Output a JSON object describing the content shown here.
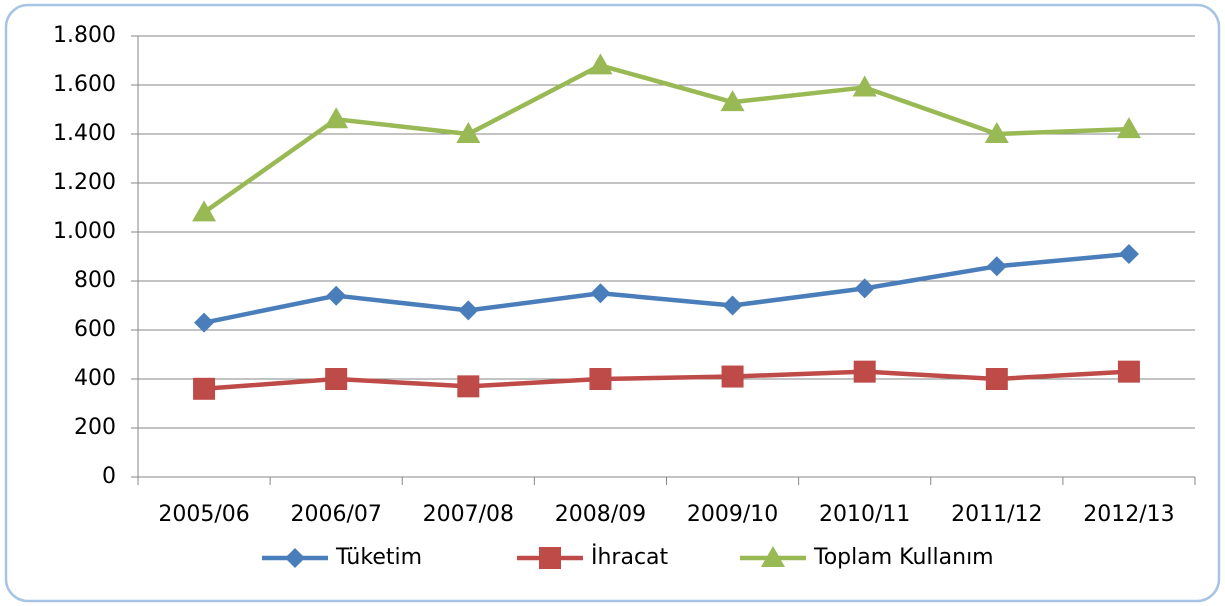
{
  "chart_data": {
    "type": "line",
    "categories": [
      "2005/06",
      "2006/07",
      "2007/08",
      "2008/09",
      "2009/10",
      "2010/11",
      "2011/12",
      "2012/13"
    ],
    "series": [
      {
        "name": "Tüketim",
        "color": "#4a7ebb",
        "marker": "diamond",
        "values": [
          630,
          740,
          680,
          750,
          700,
          770,
          860,
          910
        ]
      },
      {
        "name": "İhracat",
        "color": "#be4b48",
        "marker": "square",
        "values": [
          360,
          400,
          370,
          400,
          410,
          430,
          400,
          430
        ]
      },
      {
        "name": "Toplam Kullanım",
        "color": "#98b954",
        "marker": "triangle",
        "values": [
          1080,
          1460,
          1400,
          1680,
          1530,
          1590,
          1400,
          1420
        ]
      }
    ],
    "ylim": [
      0,
      1800
    ],
    "yticks": [
      0,
      200,
      400,
      600,
      800,
      {
        "value": 1000,
        "label": "1.000"
      },
      {
        "value": 1200,
        "label": "1.200"
      },
      {
        "value": 1400,
        "label": "1.400"
      },
      {
        "value": 1600,
        "label": "1.600"
      },
      {
        "value": 1800,
        "label": "1.800"
      }
    ],
    "grid": true,
    "legend": "bottom"
  }
}
